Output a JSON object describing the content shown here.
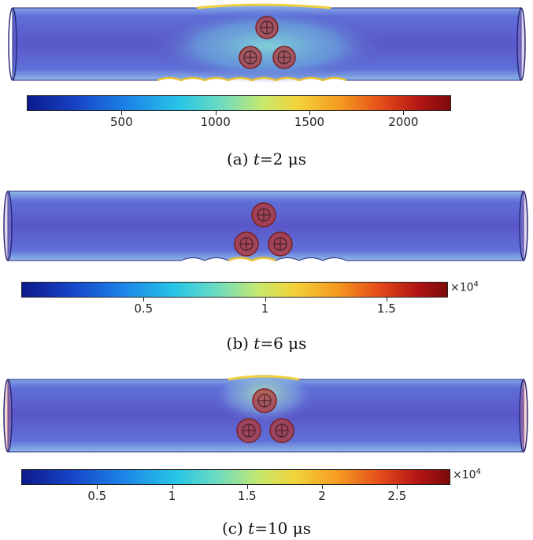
{
  "panels": [
    {
      "id": "a",
      "caption_prefix": "(a) ",
      "caption_var": "t",
      "caption_value": "=2  μs",
      "colorbar": {
        "ticks": [
          500,
          1000,
          1500,
          2000
        ],
        "tick_labels": [
          "500",
          "1000",
          "1500",
          "2000"
        ],
        "min": 0,
        "max": 2250,
        "multiplier": ""
      }
    },
    {
      "id": "b",
      "caption_prefix": "(b) ",
      "caption_var": "t",
      "caption_value": "=6  μs",
      "colorbar": {
        "ticks": [
          0.5,
          1,
          1.5
        ],
        "tick_labels": [
          "0.5",
          "1",
          "1.5"
        ],
        "min": 0,
        "max": 1.75,
        "multiplier": "×10",
        "multiplier_exp": "4"
      }
    },
    {
      "id": "c",
      "caption_prefix": "(c) ",
      "caption_var": "t",
      "caption_value": "=10  μs",
      "colorbar": {
        "ticks": [
          0.5,
          1,
          1.5,
          2,
          2.5
        ],
        "tick_labels": [
          "0.5",
          "1",
          "1.5",
          "2",
          "2.5"
        ],
        "min": 0,
        "max": 2.85,
        "multiplier": "×10",
        "multiplier_exp": "4"
      }
    }
  ],
  "colors": {
    "tube": "#4a55c8",
    "hot": "#e8b020",
    "hole": "#b23a3a"
  }
}
